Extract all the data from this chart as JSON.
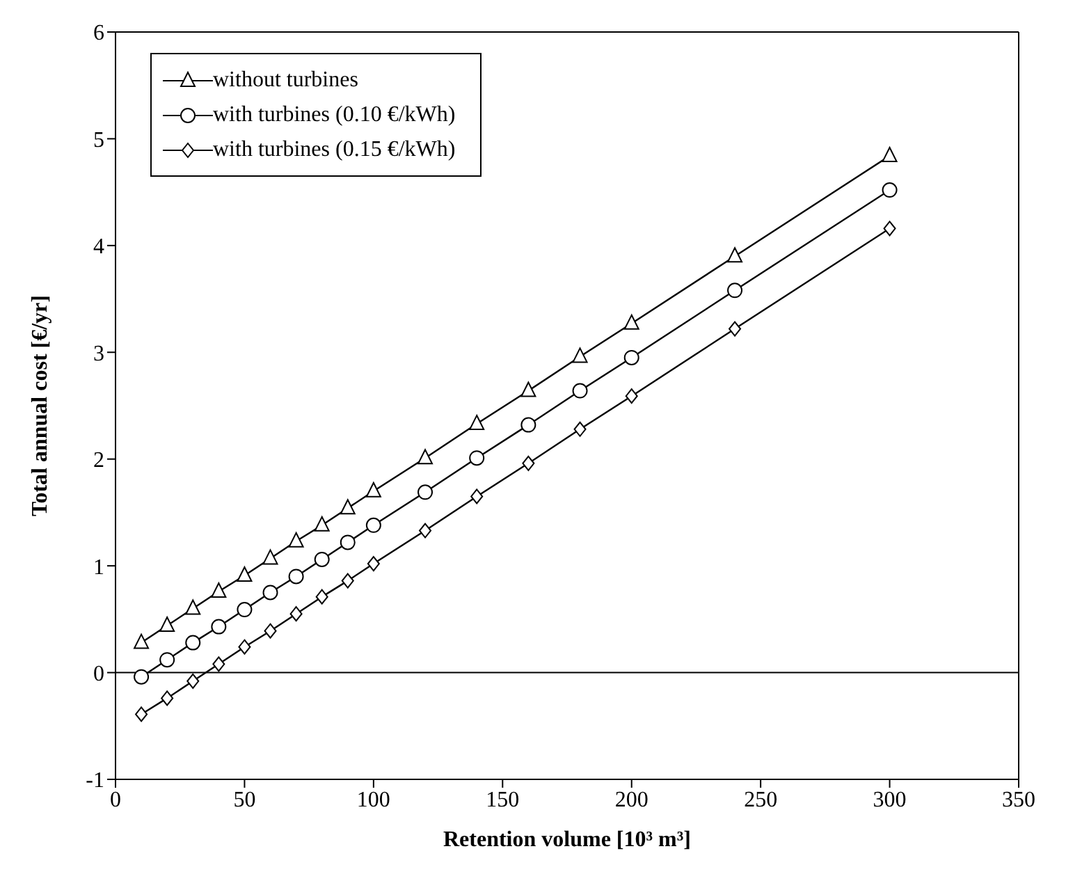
{
  "chart_data": {
    "type": "line",
    "xlabel": "Retention volume [10³ m³]",
    "ylabel": "Total annual cost [€/yr]",
    "x": [
      10,
      20,
      30,
      40,
      50,
      60,
      70,
      80,
      90,
      100,
      120,
      140,
      160,
      180,
      200,
      240,
      300
    ],
    "series": [
      {
        "name": "without turbines",
        "color": "#000000",
        "marker": "triangle",
        "values": [
          0.28,
          0.44,
          0.6,
          0.76,
          0.91,
          1.07,
          1.23,
          1.38,
          1.54,
          1.7,
          2.01,
          2.33,
          2.64,
          2.96,
          3.27,
          3.9,
          4.84
        ]
      },
      {
        "name": "with turbines (0.10 €/kWh)",
        "color": "#000000",
        "marker": "circle",
        "values": [
          -0.04,
          0.12,
          0.28,
          0.43,
          0.59,
          0.75,
          0.9,
          1.06,
          1.22,
          1.38,
          1.69,
          2.01,
          2.32,
          2.64,
          2.95,
          3.58,
          4.52
        ]
      },
      {
        "name": "with turbines (0.15 €/kWh)",
        "color": "#000000",
        "marker": "diamond",
        "values": [
          -0.39,
          -0.24,
          -0.08,
          0.08,
          0.24,
          0.39,
          0.55,
          0.71,
          0.86,
          1.02,
          1.33,
          1.65,
          1.96,
          2.28,
          2.59,
          3.22,
          4.16
        ]
      }
    ],
    "xlim": [
      0,
      350
    ],
    "xticks": [
      0,
      50,
      100,
      150,
      200,
      250,
      300,
      350
    ],
    "ylim": [
      -1,
      6
    ],
    "yticks": [
      -1,
      0,
      1,
      2,
      3,
      4,
      5,
      6
    ],
    "ref_lines": [
      {
        "axis": "y",
        "value": 0,
        "color": "#000000"
      }
    ],
    "grid": false,
    "legend": "top left",
    "line_style": "solid"
  }
}
